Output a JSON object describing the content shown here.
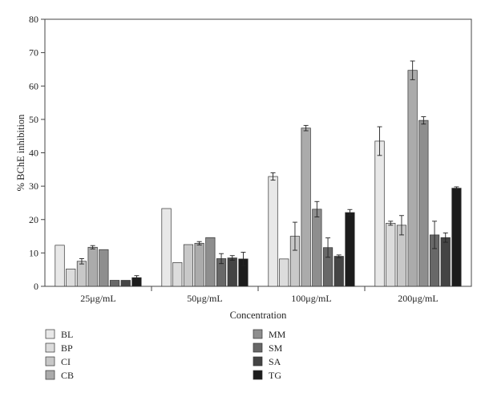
{
  "chart_data": {
    "type": "bar",
    "title": "",
    "xlabel": "Concentration",
    "ylabel": "% BChE inhibition",
    "ylim": [
      0,
      80
    ],
    "yticks": [
      0,
      10,
      20,
      30,
      40,
      50,
      60,
      70,
      80
    ],
    "grid": false,
    "legend_position": "bottom",
    "categories": [
      "25μg/mL",
      "50μg/mL",
      "100μg/mL",
      "200μg/mL"
    ],
    "series": [
      {
        "name": "BL",
        "color": "#e8e8e8",
        "values": [
          12.3,
          23.3,
          32.9,
          43.5
        ],
        "errors": [
          0,
          0,
          1.1,
          4.3
        ]
      },
      {
        "name": "BP",
        "color": "#dcdcdc",
        "values": [
          5.2,
          7.1,
          8.2,
          18.9
        ],
        "errors": [
          0,
          0,
          0,
          0.6
        ]
      },
      {
        "name": "CI",
        "color": "#c8c8c8",
        "values": [
          7.5,
          12.5,
          15.0,
          18.3
        ],
        "errors": [
          0.8,
          0,
          4.2,
          2.9
        ]
      },
      {
        "name": "CB",
        "color": "#ababab",
        "values": [
          11.7,
          12.9,
          47.4,
          64.7
        ],
        "errors": [
          0.5,
          0.5,
          0.8,
          2.8
        ]
      },
      {
        "name": "MM",
        "color": "#8e8e8e",
        "values": [
          11.0,
          14.6,
          23.1,
          49.7
        ],
        "errors": [
          0,
          0,
          2.3,
          1.1
        ]
      },
      {
        "name": "SM",
        "color": "#686868",
        "values": [
          1.8,
          8.3,
          11.6,
          15.4
        ],
        "errors": [
          0,
          1.5,
          2.9,
          4.1
        ]
      },
      {
        "name": "SA",
        "color": "#444444",
        "values": [
          1.8,
          8.5,
          9.0,
          14.6
        ],
        "errors": [
          0,
          0.7,
          0.4,
          1.4
        ]
      },
      {
        "name": "TG",
        "color": "#1c1c1c",
        "values": [
          2.6,
          8.2,
          22.1,
          29.4
        ],
        "errors": [
          0.6,
          2.0,
          0.9,
          0.4
        ]
      }
    ]
  }
}
